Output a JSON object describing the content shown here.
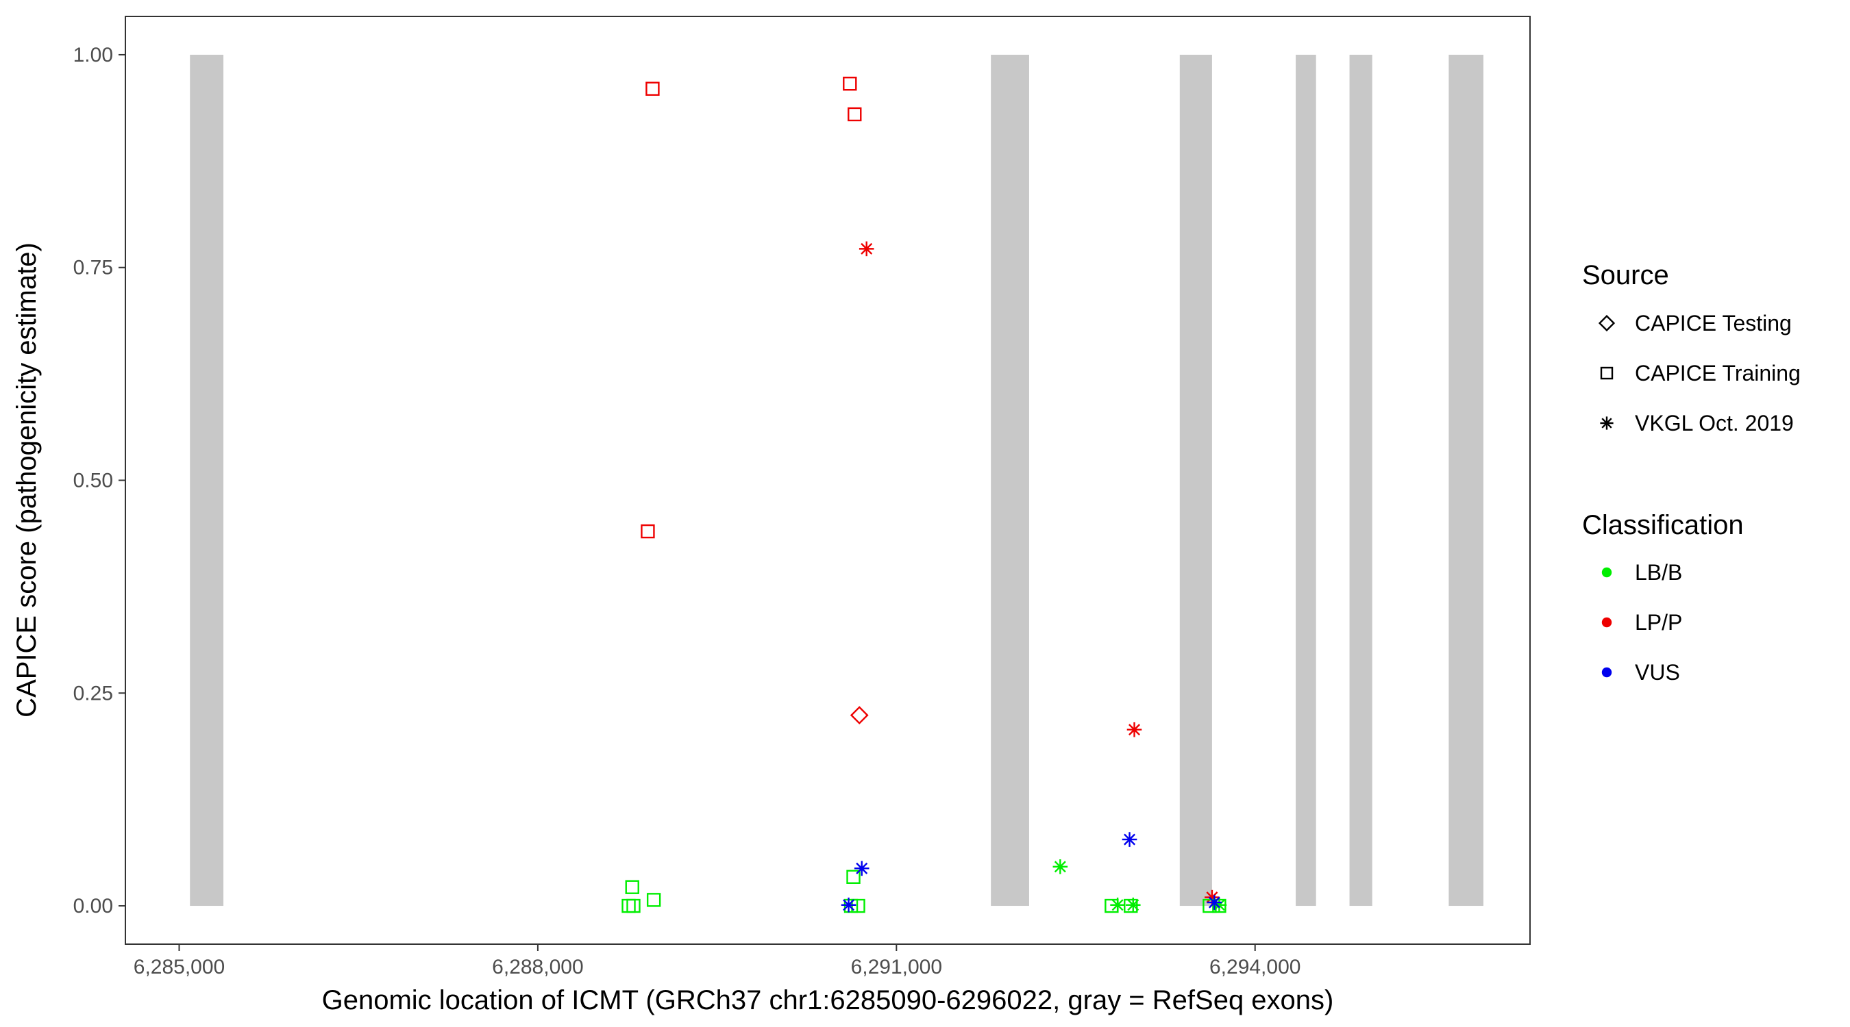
{
  "chart_data": {
    "type": "scatter",
    "xlabel": "Genomic location of ICMT (GRCh37 chr1:6285090-6296022, gray = RefSeq exons)",
    "ylabel": "CAPICE score (pathogenicity estimate)",
    "xlim": [
      6284550,
      6296300
    ],
    "ylim": [
      -0.045,
      1.045
    ],
    "x_ticks": [
      6285000,
      6288000,
      6291000,
      6294000
    ],
    "x_tick_labels": [
      "6,285,000",
      "6,288,000",
      "6,291,000",
      "6,294,000"
    ],
    "y_ticks": [
      0,
      0.25,
      0.5,
      0.75,
      1
    ],
    "y_tick_labels": [
      "0.00",
      "0.25",
      "0.50",
      "0.75",
      "1.00"
    ],
    "grid": false,
    "exons": [
      {
        "start": 6285090,
        "end": 6285370
      },
      {
        "start": 6291790,
        "end": 6292110
      },
      {
        "start": 6293370,
        "end": 6293640
      },
      {
        "start": 6294340,
        "end": 6294510
      },
      {
        "start": 6294790,
        "end": 6294980
      },
      {
        "start": 6295620,
        "end": 6295910
      }
    ],
    "exon_color": "#c8c8c8",
    "legends": [
      {
        "title": "Source",
        "position": "right",
        "entries": [
          {
            "label": "CAPICE Testing",
            "shape": "diamond"
          },
          {
            "label": "CAPICE Training",
            "shape": "square"
          },
          {
            "label": "VKGL Oct. 2019",
            "shape": "star"
          }
        ]
      },
      {
        "title": "Classification",
        "position": "right",
        "entries": [
          {
            "label": "LB/B",
            "color": "#00ee00"
          },
          {
            "label": "LP/P",
            "color": "#ee0000"
          },
          {
            "label": "VUS",
            "color": "#0000ee"
          }
        ]
      }
    ],
    "series": [
      {
        "source": "CAPICE Training",
        "classification": "LP/P",
        "points": [
          [
            6288960,
            0.96
          ],
          [
            6288920,
            0.44
          ],
          [
            6290610,
            0.966
          ],
          [
            6290650,
            0.93
          ]
        ]
      },
      {
        "source": "CAPICE Testing",
        "classification": "LP/P",
        "points": [
          [
            6290690,
            0.224
          ]
        ]
      },
      {
        "source": "VKGL Oct. 2019",
        "classification": "LP/P",
        "points": [
          [
            6290750,
            0.772
          ],
          [
            6292990,
            0.207
          ],
          [
            6293640,
            0.01
          ]
        ]
      },
      {
        "source": "CAPICE Training",
        "classification": "LB/B",
        "points": [
          [
            6288760,
            0.0
          ],
          [
            6288800,
            0.0
          ],
          [
            6288790,
            0.022
          ],
          [
            6288970,
            0.007
          ],
          [
            6290640,
            0.034
          ],
          [
            6290620,
            0.0
          ],
          [
            6290680,
            0.0
          ],
          [
            6292800,
            0.0
          ],
          [
            6292960,
            0.0
          ],
          [
            6293620,
            0.0
          ],
          [
            6293700,
            0.0
          ]
        ]
      },
      {
        "source": "VKGL Oct. 2019",
        "classification": "LB/B",
        "points": [
          [
            6292370,
            0.046
          ],
          [
            6292850,
            0.001
          ],
          [
            6292980,
            0.001
          ],
          [
            6293700,
            0.001
          ]
        ]
      },
      {
        "source": "VKGL Oct. 2019",
        "classification": "VUS",
        "points": [
          [
            6290710,
            0.044
          ],
          [
            6290600,
            0.001
          ],
          [
            6292950,
            0.078
          ],
          [
            6293660,
            0.004
          ]
        ]
      }
    ],
    "colors": {
      "LB/B": "#00ee00",
      "LP/P": "#ee0000",
      "VUS": "#0000ee"
    }
  }
}
